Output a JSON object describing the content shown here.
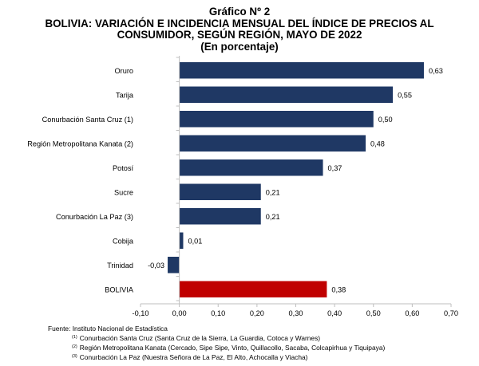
{
  "title": {
    "line1": "Gráfico Nº 2",
    "line2": "BOLIVIA: VARIACIÓN E INCIDENCIA MENSUAL DEL ÍNDICE DE PRECIOS AL",
    "line3": "CONSUMIDOR, SEGÚN REGIÓN, MAYO DE 2022",
    "line4": "(En porcentaje)"
  },
  "chart_data": {
    "type": "bar",
    "orientation": "horizontal",
    "categories": [
      "Oruro",
      "Tarija",
      "Conurbación Santa Cruz (1)",
      "Región Metropolitana Kanata (2)",
      "Potosí",
      "Sucre",
      "Conurbación La Paz (3)",
      "Cobija",
      "Trinidad",
      "BOLIVIA"
    ],
    "values": [
      0.63,
      0.55,
      0.5,
      0.48,
      0.37,
      0.21,
      0.21,
      0.01,
      -0.03,
      0.38
    ],
    "value_labels": [
      "0,63",
      "0,55",
      "0,50",
      "0,48",
      "0,37",
      "0,21",
      "0,21",
      "0,01",
      "-0,03",
      "0,38"
    ],
    "xlim": [
      -0.1,
      0.7
    ],
    "xticks": [
      -0.1,
      0.0,
      0.1,
      0.2,
      0.3,
      0.4,
      0.5,
      0.6,
      0.7
    ],
    "xtick_labels": [
      "-0,10",
      "0,00",
      "0,10",
      "0,20",
      "0,30",
      "0,40",
      "0,50",
      "0,60",
      "0,70"
    ],
    "bar_color": "#1f3864",
    "highlight_color": "#c00000",
    "highlight_category": "BOLIVIA",
    "grid": false,
    "legend": "none"
  },
  "footer": {
    "source": "Fuente: Instituto Nacional de Estadística",
    "notes": [
      {
        "mark": "(1)",
        "text": "Conurbación Santa Cruz (Santa Cruz de la Sierra, La Guardia, Cotoca y Warnes)"
      },
      {
        "mark": "(2)",
        "text": "Región Metropolitana Kanata (Cercado, Sipe Sipe, Vinto, Quillacollo, Sacaba, Colcapirhua y Tiquipaya)"
      },
      {
        "mark": "(3)",
        "text": "Conurbación La Paz (Nuestra Señora de La Paz, El Alto, Achocalla y Viacha)"
      }
    ]
  }
}
